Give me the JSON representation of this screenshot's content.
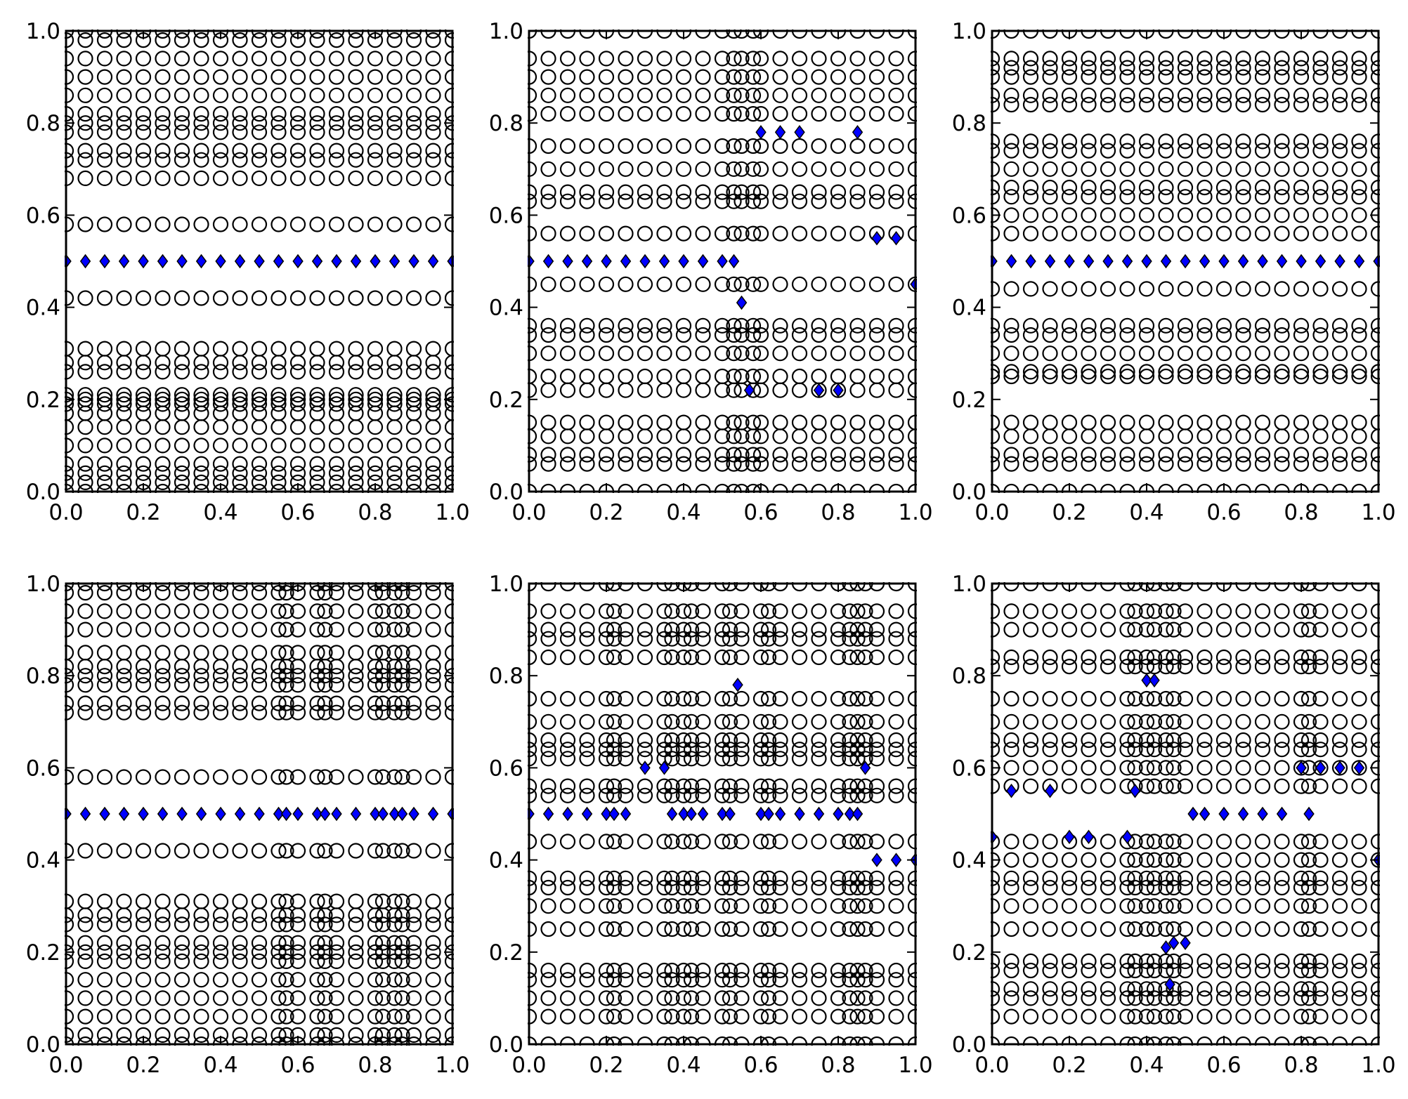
{
  "colors": {
    "background": "#ffffff",
    "axis": "#000000",
    "circle_edge": "#000000",
    "diamond_fill": "#0000ff"
  },
  "axis_tick_labels": [
    "0.0",
    "0.2",
    "0.4",
    "0.6",
    "0.8",
    "1.0"
  ],
  "chart_data": [
    {
      "type": "scatter",
      "panel": "top-left",
      "title": "",
      "xlabel": "",
      "ylabel": "",
      "xlim": [
        0,
        1
      ],
      "ylim": [
        0,
        1
      ],
      "xticks": [
        "0.0",
        "0.2",
        "0.4",
        "0.6",
        "0.8",
        "1.0"
      ],
      "yticks": [
        "0.0",
        "0.2",
        "0.4",
        "0.6",
        "0.8",
        "1.0"
      ],
      "grid": false,
      "series": [
        {
          "marker": "circle",
          "color": "none",
          "edgecolor": "#000000",
          "columns_x": [
            0,
            0.05,
            0.1,
            0.15,
            0.2,
            0.25,
            0.3,
            0.35,
            0.4,
            0.45,
            0.5,
            0.55,
            0.6,
            0.65,
            0.7,
            0.75,
            0.8,
            0.85,
            0.9,
            0.95,
            1.0
          ],
          "rows_y": [
            0.0,
            0.02,
            0.04,
            0.06,
            0.1,
            0.14,
            0.17,
            0.19,
            0.2,
            0.21,
            0.26,
            0.28,
            0.31,
            0.42,
            0.58,
            0.68,
            0.72,
            0.74,
            0.78,
            0.8,
            0.82,
            0.86,
            0.9,
            0.94,
            0.98,
            1.0
          ]
        },
        {
          "marker": "diamond",
          "color": "#0000ff",
          "edgecolor": "#000000",
          "x": [
            0,
            0.05,
            0.1,
            0.15,
            0.2,
            0.25,
            0.3,
            0.35,
            0.4,
            0.45,
            0.5,
            0.55,
            0.6,
            0.65,
            0.7,
            0.75,
            0.8,
            0.85,
            0.9,
            0.95,
            1.0
          ],
          "y": [
            0.5,
            0.5,
            0.5,
            0.5,
            0.5,
            0.5,
            0.5,
            0.5,
            0.5,
            0.5,
            0.5,
            0.5,
            0.5,
            0.5,
            0.5,
            0.5,
            0.5,
            0.5,
            0.5,
            0.5,
            0.5
          ]
        }
      ]
    },
    {
      "type": "scatter",
      "panel": "top-middle",
      "title": "",
      "xlabel": "",
      "ylabel": "",
      "xlim": [
        0,
        1
      ],
      "ylim": [
        0,
        1
      ],
      "xticks": [
        "0.0",
        "0.2",
        "0.4",
        "0.6",
        "0.8",
        "1.0"
      ],
      "yticks": [
        "0.0",
        "0.2",
        "0.4",
        "0.6",
        "0.8",
        "1.0"
      ],
      "grid": false,
      "series": [
        {
          "marker": "circle",
          "color": "none",
          "edgecolor": "#000000",
          "columns_x": [
            0,
            0.05,
            0.1,
            0.15,
            0.2,
            0.25,
            0.3,
            0.35,
            0.4,
            0.45,
            0.5,
            0.53,
            0.55,
            0.58,
            0.6,
            0.65,
            0.7,
            0.75,
            0.8,
            0.85,
            0.9,
            0.95,
            1.0
          ],
          "rows_y": [
            0.0,
            0.06,
            0.08,
            0.12,
            0.15,
            0.22,
            0.25,
            0.3,
            0.34,
            0.36,
            0.45,
            0.56,
            0.63,
            0.65,
            0.7,
            0.75,
            0.82,
            0.86,
            0.9,
            0.94,
            1.0
          ]
        },
        {
          "marker": "diamond",
          "color": "#0000ff",
          "edgecolor": "#000000",
          "x": [
            0,
            0.05,
            0.1,
            0.15,
            0.2,
            0.25,
            0.3,
            0.35,
            0.4,
            0.45,
            0.5,
            0.53,
            0.55,
            0.57,
            0.6,
            0.65,
            0.7,
            0.75,
            0.8,
            0.85,
            0.9,
            0.95,
            1.0
          ],
          "y": [
            0.5,
            0.5,
            0.5,
            0.5,
            0.5,
            0.5,
            0.5,
            0.5,
            0.5,
            0.5,
            0.5,
            0.5,
            0.41,
            0.22,
            0.78,
            0.78,
            0.78,
            0.22,
            0.22,
            0.78,
            0.55,
            0.55,
            0.45
          ]
        }
      ]
    },
    {
      "type": "scatter",
      "panel": "top-right",
      "title": "",
      "xlabel": "",
      "ylabel": "",
      "xlim": [
        0,
        1
      ],
      "ylim": [
        0,
        1
      ],
      "xticks": [
        "0.0",
        "0.2",
        "0.4",
        "0.6",
        "0.8",
        "1.0"
      ],
      "yticks": [
        "0.0",
        "0.2",
        "0.4",
        "0.6",
        "0.8",
        "1.0"
      ],
      "grid": false,
      "series": [
        {
          "marker": "circle",
          "color": "none",
          "edgecolor": "#000000",
          "columns_x": [
            0,
            0.05,
            0.1,
            0.15,
            0.2,
            0.25,
            0.3,
            0.35,
            0.4,
            0.45,
            0.5,
            0.55,
            0.6,
            0.65,
            0.7,
            0.75,
            0.8,
            0.85,
            0.9,
            0.95,
            1.0
          ],
          "rows_y": [
            0.0,
            0.06,
            0.08,
            0.12,
            0.15,
            0.25,
            0.26,
            0.3,
            0.34,
            0.36,
            0.44,
            0.56,
            0.6,
            0.64,
            0.66,
            0.7,
            0.74,
            0.76,
            0.84,
            0.86,
            0.9,
            0.92,
            0.94,
            1.0
          ]
        },
        {
          "marker": "diamond",
          "color": "#0000ff",
          "edgecolor": "#000000",
          "x": [
            0,
            0.05,
            0.1,
            0.15,
            0.2,
            0.25,
            0.3,
            0.35,
            0.4,
            0.45,
            0.5,
            0.55,
            0.6,
            0.65,
            0.7,
            0.75,
            0.8,
            0.85,
            0.9,
            0.95,
            1.0
          ],
          "y": [
            0.5,
            0.5,
            0.5,
            0.5,
            0.5,
            0.5,
            0.5,
            0.5,
            0.5,
            0.5,
            0.5,
            0.5,
            0.5,
            0.5,
            0.5,
            0.5,
            0.5,
            0.5,
            0.5,
            0.5,
            0.5
          ]
        }
      ]
    },
    {
      "type": "scatter",
      "panel": "bottom-left",
      "title": "",
      "xlabel": "",
      "ylabel": "",
      "xlim": [
        0,
        1
      ],
      "ylim": [
        0,
        1
      ],
      "xticks": [
        "0.0",
        "0.2",
        "0.4",
        "0.6",
        "0.8",
        "1.0"
      ],
      "yticks": [
        "0.0",
        "0.2",
        "0.4",
        "0.6",
        "0.8",
        "1.0"
      ],
      "grid": false,
      "series": [
        {
          "marker": "circle",
          "color": "none",
          "edgecolor": "#000000",
          "columns_x": [
            0,
            0.05,
            0.1,
            0.15,
            0.2,
            0.25,
            0.3,
            0.35,
            0.4,
            0.45,
            0.5,
            0.55,
            0.57,
            0.6,
            0.65,
            0.67,
            0.7,
            0.75,
            0.8,
            0.82,
            0.85,
            0.87,
            0.9,
            0.95,
            1.0
          ],
          "rows_y": [
            0.0,
            0.02,
            0.06,
            0.1,
            0.14,
            0.18,
            0.2,
            0.22,
            0.26,
            0.28,
            0.31,
            0.42,
            0.58,
            0.72,
            0.74,
            0.78,
            0.8,
            0.82,
            0.85,
            0.9,
            0.94,
            0.98,
            1.0
          ]
        },
        {
          "marker": "diamond",
          "color": "#0000ff",
          "edgecolor": "#000000",
          "x": [
            0,
            0.05,
            0.1,
            0.15,
            0.2,
            0.25,
            0.3,
            0.35,
            0.4,
            0.45,
            0.5,
            0.55,
            0.57,
            0.6,
            0.65,
            0.67,
            0.7,
            0.75,
            0.8,
            0.82,
            0.85,
            0.87,
            0.9,
            0.95,
            1.0
          ],
          "y": [
            0.5,
            0.5,
            0.5,
            0.5,
            0.5,
            0.5,
            0.5,
            0.5,
            0.5,
            0.5,
            0.5,
            0.5,
            0.5,
            0.5,
            0.5,
            0.5,
            0.5,
            0.5,
            0.5,
            0.5,
            0.5,
            0.5,
            0.5,
            0.5,
            0.5
          ]
        }
      ]
    },
    {
      "type": "scatter",
      "panel": "bottom-middle",
      "title": "",
      "xlabel": "",
      "ylabel": "",
      "xlim": [
        0,
        1
      ],
      "ylim": [
        0,
        1
      ],
      "xticks": [
        "0.0",
        "0.2",
        "0.4",
        "0.6",
        "0.8",
        "1.0"
      ],
      "yticks": [
        "0.0",
        "0.2",
        "0.4",
        "0.6",
        "0.8",
        "1.0"
      ],
      "grid": false,
      "series": [
        {
          "marker": "circle",
          "color": "none",
          "edgecolor": "#000000",
          "columns_x": [
            0,
            0.05,
            0.1,
            0.15,
            0.2,
            0.22,
            0.25,
            0.3,
            0.35,
            0.37,
            0.4,
            0.42,
            0.45,
            0.5,
            0.52,
            0.55,
            0.6,
            0.62,
            0.65,
            0.7,
            0.75,
            0.8,
            0.83,
            0.85,
            0.87,
            0.9,
            0.95,
            1.0
          ],
          "rows_y": [
            0.0,
            0.06,
            0.1,
            0.14,
            0.16,
            0.25,
            0.3,
            0.34,
            0.36,
            0.44,
            0.54,
            0.56,
            0.62,
            0.64,
            0.66,
            0.7,
            0.75,
            0.84,
            0.88,
            0.9,
            0.94,
            1.0
          ]
        },
        {
          "marker": "diamond",
          "color": "#0000ff",
          "edgecolor": "#000000",
          "x": [
            0,
            0.05,
            0.1,
            0.15,
            0.2,
            0.22,
            0.25,
            0.3,
            0.35,
            0.37,
            0.4,
            0.42,
            0.45,
            0.5,
            0.52,
            0.54,
            0.6,
            0.62,
            0.65,
            0.7,
            0.75,
            0.8,
            0.83,
            0.85,
            0.87,
            0.9,
            0.95,
            1.0
          ],
          "y": [
            0.5,
            0.5,
            0.5,
            0.5,
            0.5,
            0.5,
            0.5,
            0.6,
            0.6,
            0.5,
            0.5,
            0.5,
            0.5,
            0.5,
            0.5,
            0.78,
            0.5,
            0.5,
            0.5,
            0.5,
            0.5,
            0.5,
            0.5,
            0.5,
            0.6,
            0.4,
            0.4,
            0.4
          ]
        }
      ]
    },
    {
      "type": "scatter",
      "panel": "bottom-right",
      "title": "",
      "xlabel": "",
      "ylabel": "",
      "xlim": [
        0,
        1
      ],
      "ylim": [
        0,
        1
      ],
      "xticks": [
        "0.0",
        "0.2",
        "0.4",
        "0.6",
        "0.8",
        "1.0"
      ],
      "yticks": [
        "0.0",
        "0.2",
        "0.4",
        "0.6",
        "0.8",
        "1.0"
      ],
      "grid": false,
      "series": [
        {
          "marker": "circle",
          "color": "none",
          "edgecolor": "#000000",
          "columns_x": [
            0,
            0.05,
            0.1,
            0.15,
            0.2,
            0.25,
            0.3,
            0.35,
            0.37,
            0.4,
            0.42,
            0.45,
            0.47,
            0.5,
            0.55,
            0.6,
            0.65,
            0.7,
            0.75,
            0.8,
            0.82,
            0.85,
            0.9,
            0.95,
            1.0
          ],
          "rows_y": [
            0.0,
            0.06,
            0.1,
            0.12,
            0.16,
            0.18,
            0.25,
            0.3,
            0.34,
            0.36,
            0.4,
            0.44,
            0.56,
            0.6,
            0.64,
            0.66,
            0.7,
            0.75,
            0.82,
            0.84,
            0.9,
            0.94,
            1.0
          ]
        },
        {
          "marker": "diamond",
          "color": "#0000ff",
          "edgecolor": "#000000",
          "x": [
            0,
            0.05,
            0.15,
            0.2,
            0.25,
            0.35,
            0.37,
            0.4,
            0.42,
            0.45,
            0.46,
            0.47,
            0.5,
            0.52,
            0.55,
            0.6,
            0.65,
            0.7,
            0.75,
            0.8,
            0.82,
            0.85,
            0.9,
            0.95,
            1.0
          ],
          "y": [
            0.45,
            0.55,
            0.55,
            0.45,
            0.45,
            0.45,
            0.55,
            0.79,
            0.79,
            0.21,
            0.13,
            0.22,
            0.22,
            0.5,
            0.5,
            0.5,
            0.5,
            0.5,
            0.5,
            0.6,
            0.5,
            0.6,
            0.6,
            0.6,
            0.4
          ]
        }
      ]
    }
  ]
}
